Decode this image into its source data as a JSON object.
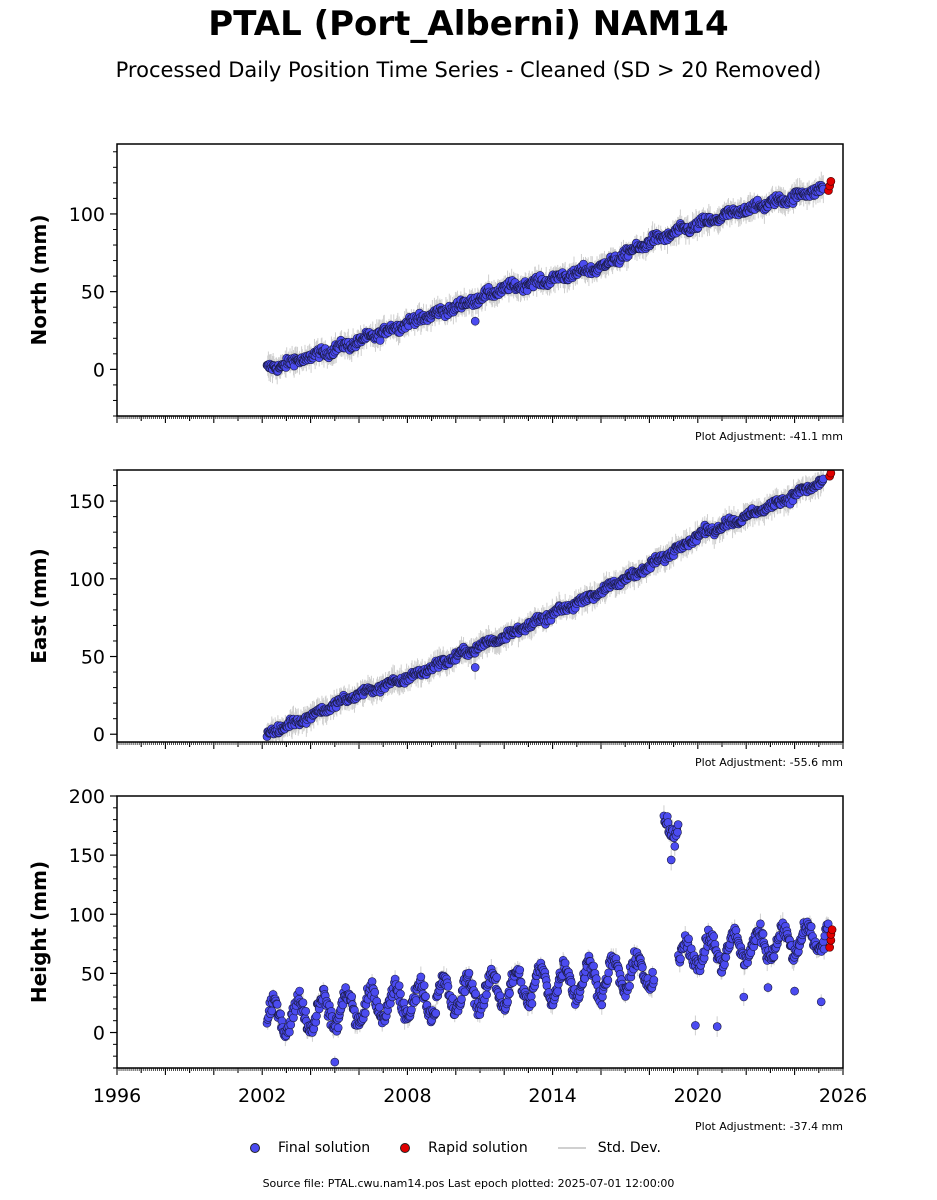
{
  "figure": {
    "title": "PTAL (Port_Alberni) NAM14",
    "subtitle": "Processed Daily Position Time Series - Cleaned (SD > 20 Removed)",
    "footer": "Source file: PTAL.cwu.nam14.pos  Last epoch plotted: 2025-07-01 12:00:00"
  },
  "legend": {
    "final_label": "Final solution",
    "rapid_label": "Rapid solution",
    "std_label": "Std. Dev.",
    "final_color": "#4b4bf0",
    "rapid_color": "#e00000",
    "std_color": "#cfcfcf"
  },
  "chart_data": [
    {
      "type": "scatter",
      "ylabel": "North (mm)",
      "xlim": [
        1996,
        2026
      ],
      "ylim": [
        -30,
        145
      ],
      "yticks": [
        0,
        50,
        100
      ],
      "adjustment": "Plot Adjustment: -41.1 mm",
      "series": [
        {
          "name": "Final solution",
          "trend": [
            {
              "x": 2002.2,
              "y": 0
            },
            {
              "x": 2004.0,
              "y": 8
            },
            {
              "x": 2006.0,
              "y": 18
            },
            {
              "x": 2008.0,
              "y": 30
            },
            {
              "x": 2010.0,
              "y": 40
            },
            {
              "x": 2012.0,
              "y": 52
            },
            {
              "x": 2014.0,
              "y": 58
            },
            {
              "x": 2016.0,
              "y": 66
            },
            {
              "x": 2018.0,
              "y": 82
            },
            {
              "x": 2020.0,
              "y": 93
            },
            {
              "x": 2022.0,
              "y": 103
            },
            {
              "x": 2024.0,
              "y": 111
            },
            {
              "x": 2025.2,
              "y": 117
            }
          ],
          "scatter_mm": 3,
          "outliers": [
            {
              "x": 2010.8,
              "y": 31
            }
          ]
        },
        {
          "name": "Rapid solution",
          "points": [
            {
              "x": 2025.4,
              "y": 115
            },
            {
              "x": 2025.45,
              "y": 118
            },
            {
              "x": 2025.5,
              "y": 121
            }
          ]
        }
      ]
    },
    {
      "type": "scatter",
      "ylabel": "East (mm)",
      "xlim": [
        1996,
        2026
      ],
      "ylim": [
        -5,
        170
      ],
      "yticks": [
        0,
        50,
        100,
        150
      ],
      "adjustment": "Plot Adjustment: -55.6 mm",
      "series": [
        {
          "name": "Final solution",
          "trend": [
            {
              "x": 2002.2,
              "y": 0
            },
            {
              "x": 2004.0,
              "y": 12
            },
            {
              "x": 2006.0,
              "y": 26
            },
            {
              "x": 2008.0,
              "y": 36
            },
            {
              "x": 2010.0,
              "y": 50
            },
            {
              "x": 2012.0,
              "y": 63
            },
            {
              "x": 2014.0,
              "y": 77
            },
            {
              "x": 2016.0,
              "y": 92
            },
            {
              "x": 2018.0,
              "y": 108
            },
            {
              "x": 2020.0,
              "y": 128
            },
            {
              "x": 2022.0,
              "y": 140
            },
            {
              "x": 2024.0,
              "y": 154
            },
            {
              "x": 2025.2,
              "y": 163
            }
          ],
          "scatter_mm": 2.5,
          "outliers": [
            {
              "x": 2010.8,
              "y": 43
            }
          ]
        },
        {
          "name": "Rapid solution",
          "points": [
            {
              "x": 2025.45,
              "y": 166
            },
            {
              "x": 2025.5,
              "y": 168
            }
          ]
        }
      ]
    },
    {
      "type": "scatter",
      "ylabel": "Height (mm)",
      "xlim": [
        1996,
        2026
      ],
      "ylim": [
        -30,
        200
      ],
      "yticks": [
        0,
        50,
        100,
        150,
        200
      ],
      "xticks": [
        1996,
        2002,
        2008,
        2014,
        2020,
        2026
      ],
      "adjustment": "Plot Adjustment: -37.4 mm",
      "series": [
        {
          "name": "Final solution",
          "segments": [
            {
              "x0": 2002.2,
              "x1": 2018.2,
              "y0": 12,
              "y1": 52,
              "amp": 14
            },
            {
              "x0": 2018.6,
              "x1": 2019.2,
              "y0": 172,
              "y1": 178,
              "amp": 10
            },
            {
              "x0": 2019.2,
              "x1": 2025.4,
              "y0": 65,
              "y1": 82,
              "amp": 12
            }
          ],
          "scatter_mm": 7,
          "outliers": [
            {
              "x": 2005.0,
              "y": -25
            },
            {
              "x": 2018.9,
              "y": 146
            },
            {
              "x": 2019.9,
              "y": 6
            },
            {
              "x": 2020.8,
              "y": 5
            },
            {
              "x": 2021.9,
              "y": 30
            },
            {
              "x": 2022.9,
              "y": 38
            },
            {
              "x": 2024.0,
              "y": 35
            },
            {
              "x": 2025.1,
              "y": 26
            }
          ]
        },
        {
          "name": "Rapid solution",
          "points": [
            {
              "x": 2025.45,
              "y": 72
            },
            {
              "x": 2025.5,
              "y": 78
            },
            {
              "x": 2025.5,
              "y": 83
            },
            {
              "x": 2025.55,
              "y": 87
            }
          ]
        }
      ]
    }
  ]
}
